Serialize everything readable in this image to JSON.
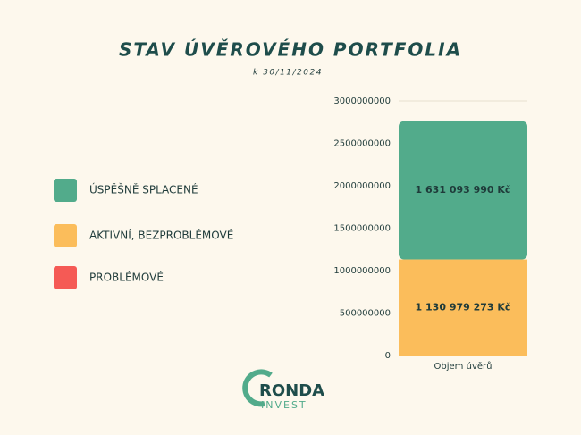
{
  "chart_data": {
    "type": "stacked_bar",
    "title": "STAV ÚVĚROVÉHO PORTFOLIA",
    "subtitle": "k 30/11/2024",
    "categories": [
      "Objem úvěrů"
    ],
    "series": [
      {
        "name": "ÚSPĚŠNĚ SPLACENÉ",
        "color": "#52ab8b",
        "values": [
          1631093990
        ],
        "value_labels": [
          "1 631 093 990 Kč"
        ]
      },
      {
        "name": "AKTIVNÍ, BEZPROBLÉMOVÉ",
        "color": "#fbbd5b",
        "values": [
          1130979273
        ],
        "value_labels": [
          "1 130 979 273 Kč"
        ]
      },
      {
        "name": "PROBLÉMOVÉ",
        "color": "#f55a55",
        "values": [
          0
        ]
      }
    ],
    "ylim": [
      0,
      3000000000
    ],
    "yticks": [
      0,
      500000000,
      1000000000,
      1500000000,
      2000000000,
      2500000000,
      3000000000
    ],
    "grid": true,
    "legend": "left"
  },
  "logo": {
    "name": "RONDA",
    "sub": "INVEST"
  }
}
